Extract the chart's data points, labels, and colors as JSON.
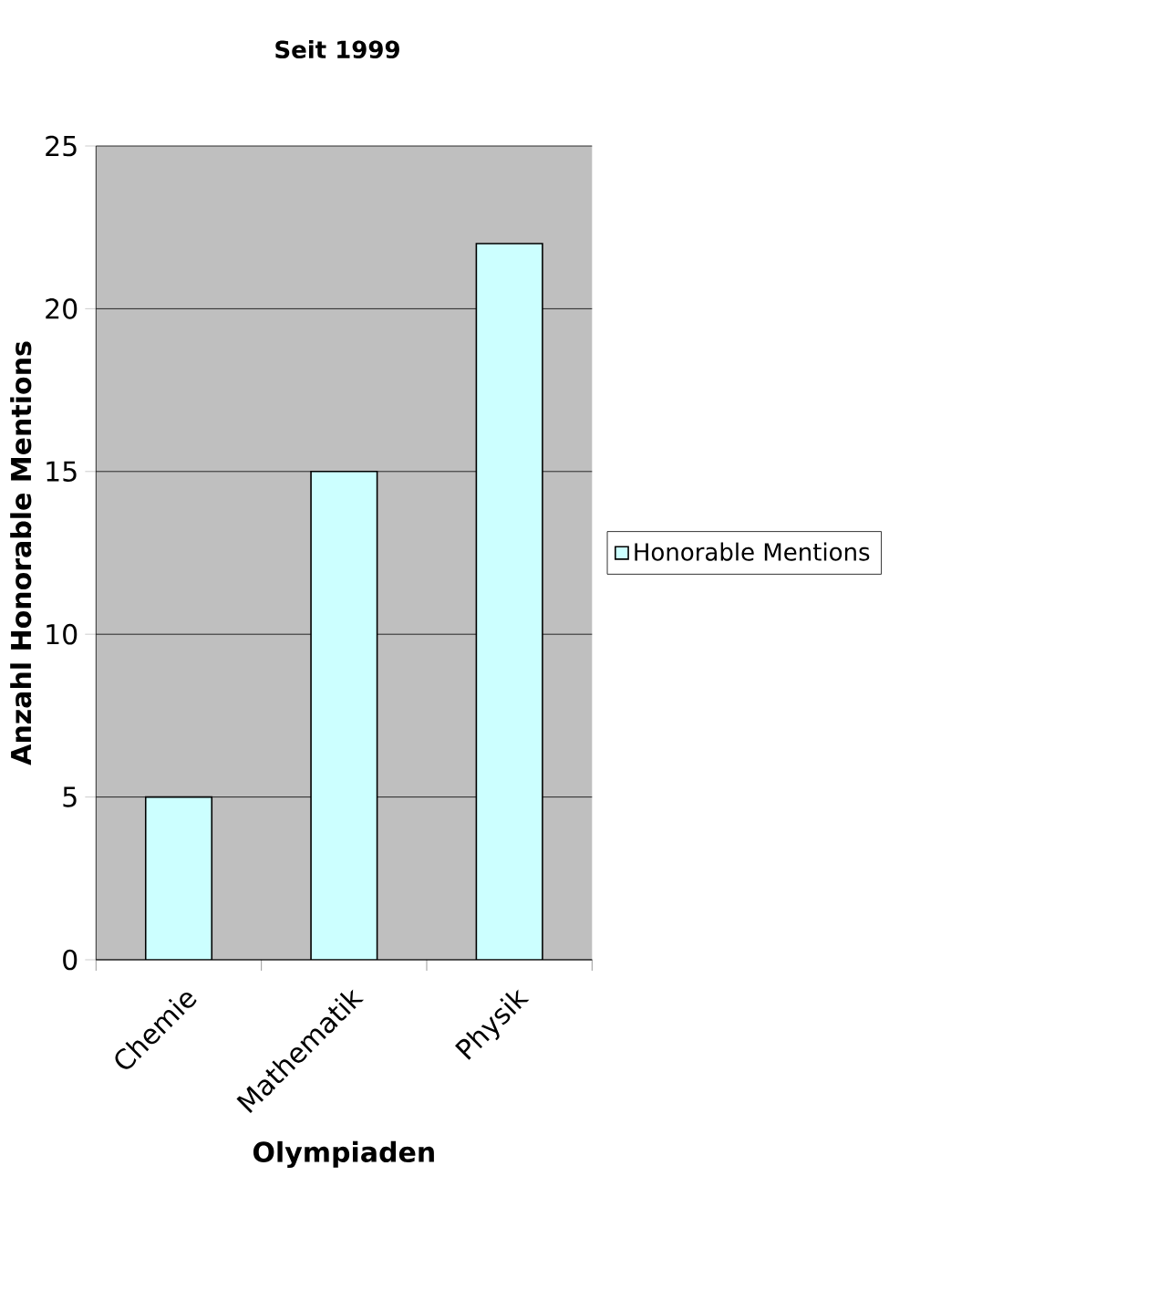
{
  "chart_data": {
    "type": "bar",
    "title": "Seit 1999",
    "xlabel": "Olympiaden",
    "ylabel": "Anzahl Honorable Mentions",
    "categories": [
      "Chemie",
      "Mathematik",
      "Physik"
    ],
    "series": [
      {
        "name": "Honorable Mentions",
        "color": "#ccffff",
        "values": [
          5,
          15,
          22
        ]
      }
    ],
    "ylim": [
      0,
      25
    ],
    "yticks": [
      0,
      5,
      10,
      15,
      20,
      25
    ],
    "grid": "y",
    "legend": "right"
  }
}
